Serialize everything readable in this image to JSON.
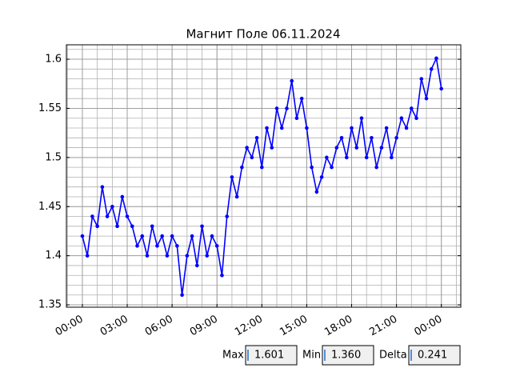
{
  "chart_data": {
    "type": "line",
    "title": "Магнит Поле 06.11.2024",
    "x": [
      0,
      20,
      40,
      60,
      80,
      100,
      120,
      140,
      160,
      180,
      200,
      220,
      240,
      260,
      280,
      300,
      320,
      340,
      360,
      380,
      400,
      420,
      440,
      460,
      480,
      500,
      520,
      540,
      560,
      580,
      600,
      620,
      640,
      660,
      680,
      700,
      720,
      740,
      760,
      780,
      800,
      820,
      840,
      860,
      880,
      900,
      920,
      940,
      960,
      980,
      1000,
      1020,
      1040,
      1060,
      1080,
      1100,
      1120,
      1140,
      1160,
      1180,
      1200,
      1220,
      1240,
      1260,
      1280,
      1300,
      1320,
      1340,
      1360,
      1380,
      1400,
      1420,
      1440
    ],
    "series": [
      {
        "color": "#0000ff",
        "values": [
          1.42,
          1.4,
          1.44,
          1.43,
          1.47,
          1.44,
          1.45,
          1.43,
          1.46,
          1.44,
          1.43,
          1.41,
          1.42,
          1.4,
          1.43,
          1.41,
          1.42,
          1.4,
          1.42,
          1.41,
          1.36,
          1.4,
          1.42,
          1.39,
          1.43,
          1.4,
          1.42,
          1.41,
          1.38,
          1.44,
          1.48,
          1.46,
          1.49,
          1.51,
          1.5,
          1.52,
          1.49,
          1.53,
          1.51,
          1.55,
          1.53,
          1.55,
          1.578,
          1.54,
          1.56,
          1.53,
          1.49,
          1.465,
          1.48,
          1.5,
          1.49,
          1.51,
          1.52,
          1.5,
          1.53,
          1.51,
          1.54,
          1.5,
          1.52,
          1.49,
          1.51,
          1.53,
          1.5,
          1.52,
          1.54,
          1.53,
          1.55,
          1.54,
          1.58,
          1.56,
          1.59,
          1.601,
          1.57
        ]
      }
    ],
    "xlim": [
      -64,
      1518
    ],
    "xticks": [
      {
        "value": 0,
        "label": "00:00"
      },
      {
        "value": 180,
        "label": "03:00"
      },
      {
        "value": 360,
        "label": "06:00"
      },
      {
        "value": 540,
        "label": "09:00"
      },
      {
        "value": 720,
        "label": "12:00"
      },
      {
        "value": 900,
        "label": "15:00"
      },
      {
        "value": 1080,
        "label": "18:00"
      },
      {
        "value": 1260,
        "label": "21:00"
      },
      {
        "value": 1440,
        "label": "00:00"
      }
    ],
    "ylim": [
      1.3476,
      1.6147
    ],
    "yticks": [
      1.35,
      1.4,
      1.45,
      1.5,
      1.55,
      1.6
    ],
    "grid": true,
    "x_minor_step": 60,
    "y_minor_step": 0.01,
    "stats": [
      {
        "label": "Max",
        "value": "1.601"
      },
      {
        "label": "Min",
        "value": "1.360"
      },
      {
        "label": "Delta",
        "value": "0.241"
      }
    ]
  }
}
